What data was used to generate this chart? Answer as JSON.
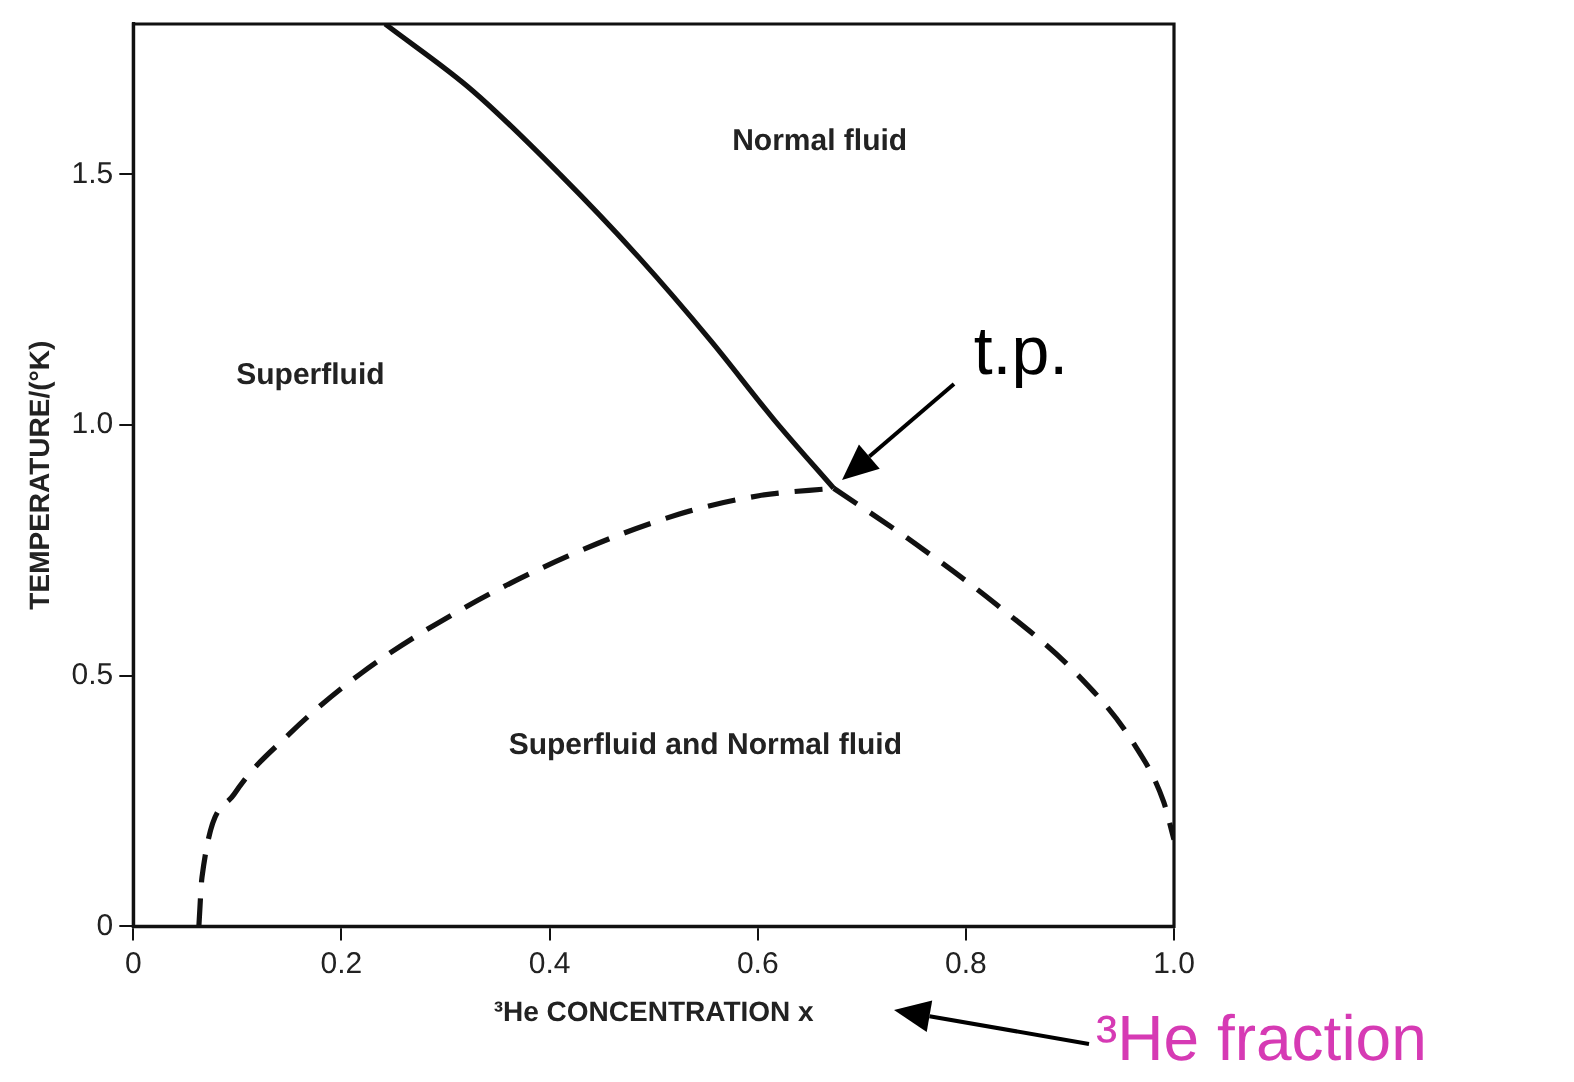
{
  "chart_data": {
    "type": "line",
    "xlabel": "³He CONCENTRATION x",
    "ylabel": "TEMPERATURE/(°K)",
    "xlim": [
      0,
      1
    ],
    "xticks": [
      0,
      0.2,
      0.4,
      0.6,
      0.8,
      {
        "value": 1,
        "label": "1.0"
      }
    ],
    "ylim": [
      0,
      1.8
    ],
    "yticks": [
      0,
      0.5,
      {
        "value": 1,
        "label": "1.0"
      },
      1.5
    ],
    "grid": false,
    "legend": false,
    "marker": "none",
    "series": [
      {
        "color": "#111111",
        "line_style": "solid",
        "x": [
          0.242,
          0.326,
          0.41,
          0.486,
          0.555,
          0.616,
          0.673
        ],
        "values": [
          1.8,
          1.667,
          1.5,
          1.334,
          1.168,
          1.01,
          0.874
        ]
      },
      {
        "color": "#111111",
        "line_style": "dashed",
        "x": [
          0.063,
          0.066,
          0.097,
          0.15,
          0.219,
          0.31,
          0.418,
          0.524,
          0.601,
          0.673
        ],
        "values": [
          0,
          0.098,
          0.264,
          0.384,
          0.505,
          0.626,
          0.739,
          0.822,
          0.859,
          0.874
        ]
      },
      {
        "color": "#111111",
        "line_style": "dashed",
        "x": [
          0.673,
          0.753,
          0.83,
          0.906,
          0.96,
          0.99,
          1
        ],
        "values": [
          0.874,
          0.761,
          0.641,
          0.505,
          0.369,
          0.249,
          0.173
        ]
      }
    ],
    "annotations": [
      "Normal fluid",
      "Superfluid",
      "Superfluid and Normal fluid",
      {
        "text": "t.p.",
        "x": 0.673,
        "y": 0.874
      },
      "³He fraction"
    ]
  }
}
